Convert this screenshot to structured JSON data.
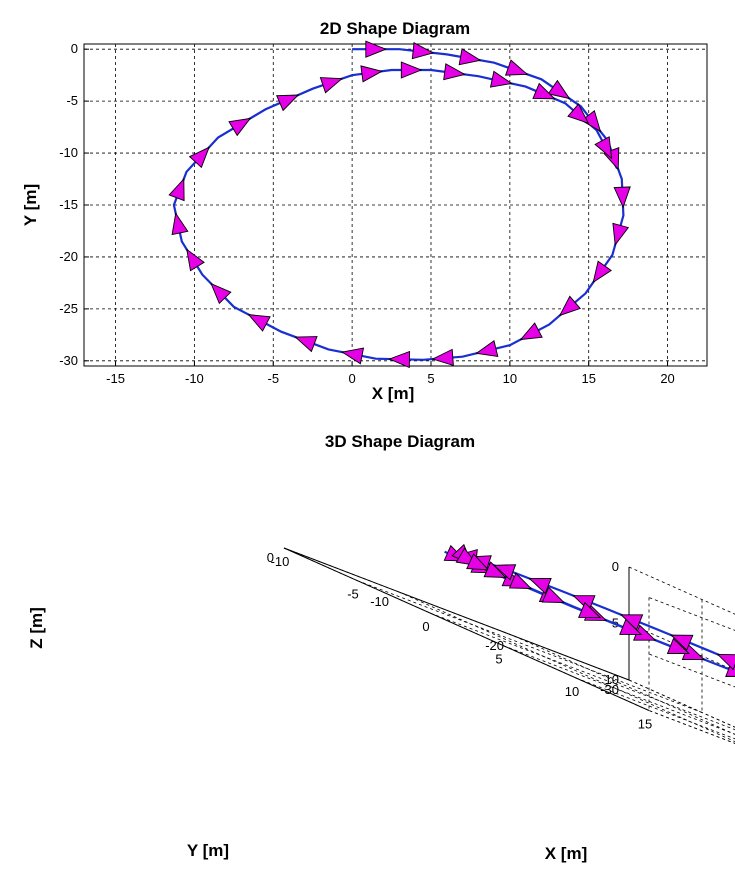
{
  "chart_data": [
    {
      "type": "line",
      "title": "2D Shape Diagram",
      "xlabel": "X [m]",
      "ylabel": "Y [m]",
      "xlim": [
        -17,
        22.5
      ],
      "ylim": [
        0.5,
        -30.5
      ],
      "y_axis_reversed": true,
      "xticks": [
        -15,
        -10,
        -5,
        0,
        5,
        10,
        15,
        20
      ],
      "yticks": [
        0,
        -5,
        -10,
        -15,
        -20,
        -25,
        -30
      ],
      "grid": true,
      "series": [
        {
          "x": [
            0,
            3,
            6,
            9,
            12,
            14.5,
            16.2,
            17.1,
            17.2,
            16.5,
            14.8,
            12.5,
            10,
            7,
            4.5,
            1.5,
            -1.5,
            -4.5,
            -7.5,
            -9.5,
            -10.8,
            -11.3,
            -10.5,
            -8.5,
            -5.5,
            -2.5,
            0,
            2.5,
            5,
            8,
            11,
            13.5,
            15.5,
            16.8
          ],
          "y": [
            0,
            0,
            -0.5,
            -1.3,
            -2.9,
            -5.5,
            -8.8,
            -12.5,
            -16,
            -19.8,
            -23.5,
            -26.5,
            -28.5,
            -29.6,
            -29.9,
            -29.8,
            -28.9,
            -27.2,
            -24.8,
            -21.7,
            -18.5,
            -15,
            -11.8,
            -8.5,
            -5.8,
            -3.8,
            -2.5,
            -2,
            -2,
            -2.6,
            -3.6,
            -5.2,
            -7.8,
            -11.5
          ],
          "arrow_markers": true
        }
      ]
    },
    {
      "type": "line",
      "projection": "3d",
      "title": "3D Shape Diagram",
      "xlabel": "X [m]",
      "ylabel": "Y [m]",
      "zlabel": "Z [m]",
      "xticks": [
        -10,
        -5,
        0,
        5,
        10,
        15
      ],
      "yticks": [
        0,
        -10,
        -20,
        -30
      ],
      "zticks": [
        0,
        5,
        10
      ],
      "zlim": [
        0,
        10
      ],
      "z_axis_reversed": true,
      "grid": true,
      "series": [
        {
          "x": [
            0,
            3,
            6,
            9,
            12,
            14.5,
            16.2,
            17.1,
            17.2,
            16.5,
            14.8,
            12.5,
            10,
            7,
            4.5,
            1.5,
            -1.5,
            -4.5,
            -7.5,
            -9.5,
            -10.8,
            -11.3,
            -10.5,
            -8.5,
            -5.5,
            -2.5,
            0,
            2.5,
            5,
            8,
            11,
            13.5,
            15.5,
            16.8
          ],
          "y": [
            0,
            0,
            -0.5,
            -1.3,
            -2.9,
            -5.5,
            -8.8,
            -12.5,
            -16,
            -19.8,
            -23.5,
            -26.5,
            -28.5,
            -29.6,
            -29.9,
            -29.8,
            -28.9,
            -27.2,
            -24.8,
            -21.7,
            -18.5,
            -15,
            -11.8,
            -8.5,
            -5.8,
            -3.8,
            -2.5,
            -2,
            -2,
            -2.6,
            -3.6,
            -5.2,
            -7.8,
            -11.5
          ],
          "z": [
            10,
            10,
            10,
            10,
            10,
            10,
            10,
            10,
            10,
            10,
            10,
            10,
            10,
            10,
            10,
            10,
            10,
            10,
            10,
            10,
            10,
            10,
            10,
            10,
            10,
            10,
            10,
            10,
            10,
            10,
            10,
            10,
            10,
            10
          ],
          "arrow_markers": true
        }
      ]
    }
  ],
  "colors": {
    "path": "#1a2fd0",
    "arrow": "#e600e6"
  }
}
